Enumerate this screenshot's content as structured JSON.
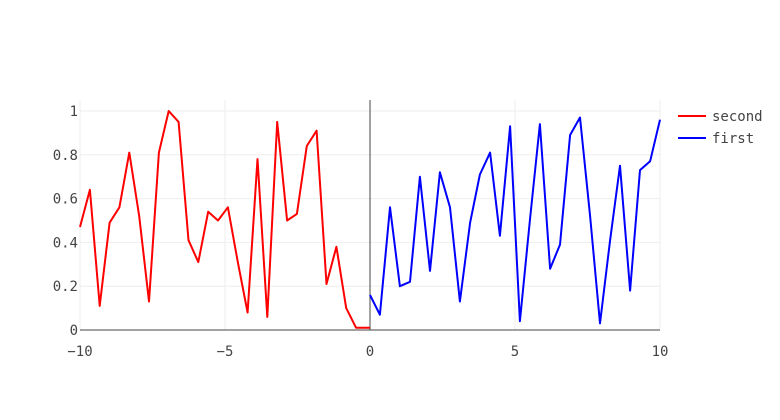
{
  "chart_data": {
    "type": "line",
    "xlim": [
      -10,
      10
    ],
    "ylim": [
      0,
      1.05
    ],
    "x_ticks": [
      -10,
      -5,
      0,
      5,
      10
    ],
    "x_tick_labels": [
      "−10",
      "−5",
      "0",
      "5",
      "10"
    ],
    "y_ticks": [
      0,
      0.2,
      0.4,
      0.6,
      0.8,
      1
    ],
    "y_tick_labels": [
      "0",
      "0.2",
      "0.4",
      "0.6",
      "0.8",
      "1"
    ],
    "grid": true,
    "zero_lines": true,
    "legend_position": "top-right",
    "series": [
      {
        "name": "second",
        "color": "#ff0000",
        "x": [
          -10,
          -9.66,
          -9.32,
          -8.98,
          -8.64,
          -8.3,
          -7.96,
          -7.62,
          -7.28,
          -6.94,
          -6.6,
          -6.26,
          -5.92,
          -5.58,
          -5.24,
          -4.9,
          -4.56,
          -4.22,
          -3.88,
          -3.54,
          -3.2,
          -2.86,
          -2.52,
          -2.18,
          -1.84,
          -1.5,
          -1.16,
          -0.82,
          -0.48,
          -0.14,
          0
        ],
        "y": [
          0.47,
          0.64,
          0.11,
          0.49,
          0.56,
          0.81,
          0.52,
          0.13,
          0.81,
          1.0,
          0.95,
          0.41,
          0.31,
          0.54,
          0.5,
          0.56,
          0.31,
          0.08,
          0.78,
          0.06,
          0.95,
          0.5,
          0.53,
          0.84,
          0.91,
          0.21,
          0.38,
          0.1,
          0.01,
          0.01,
          0.01
        ]
      },
      {
        "name": "first",
        "color": "#0000ff",
        "x": [
          0,
          0.34,
          0.69,
          1.03,
          1.38,
          1.72,
          2.07,
          2.41,
          2.76,
          3.1,
          3.45,
          3.79,
          4.14,
          4.48,
          4.83,
          5.17,
          5.52,
          5.86,
          6.21,
          6.55,
          6.9,
          7.24,
          7.59,
          7.93,
          8.28,
          8.62,
          8.97,
          9.31,
          9.66,
          10
        ],
        "y": [
          0.16,
          0.07,
          0.56,
          0.2,
          0.22,
          0.7,
          0.27,
          0.72,
          0.56,
          0.13,
          0.49,
          0.71,
          0.81,
          0.43,
          0.93,
          0.04,
          0.51,
          0.94,
          0.28,
          0.39,
          0.89,
          0.97,
          0.52,
          0.03,
          0.41,
          0.75,
          0.18,
          0.73,
          0.77,
          0.96
        ]
      }
    ]
  }
}
